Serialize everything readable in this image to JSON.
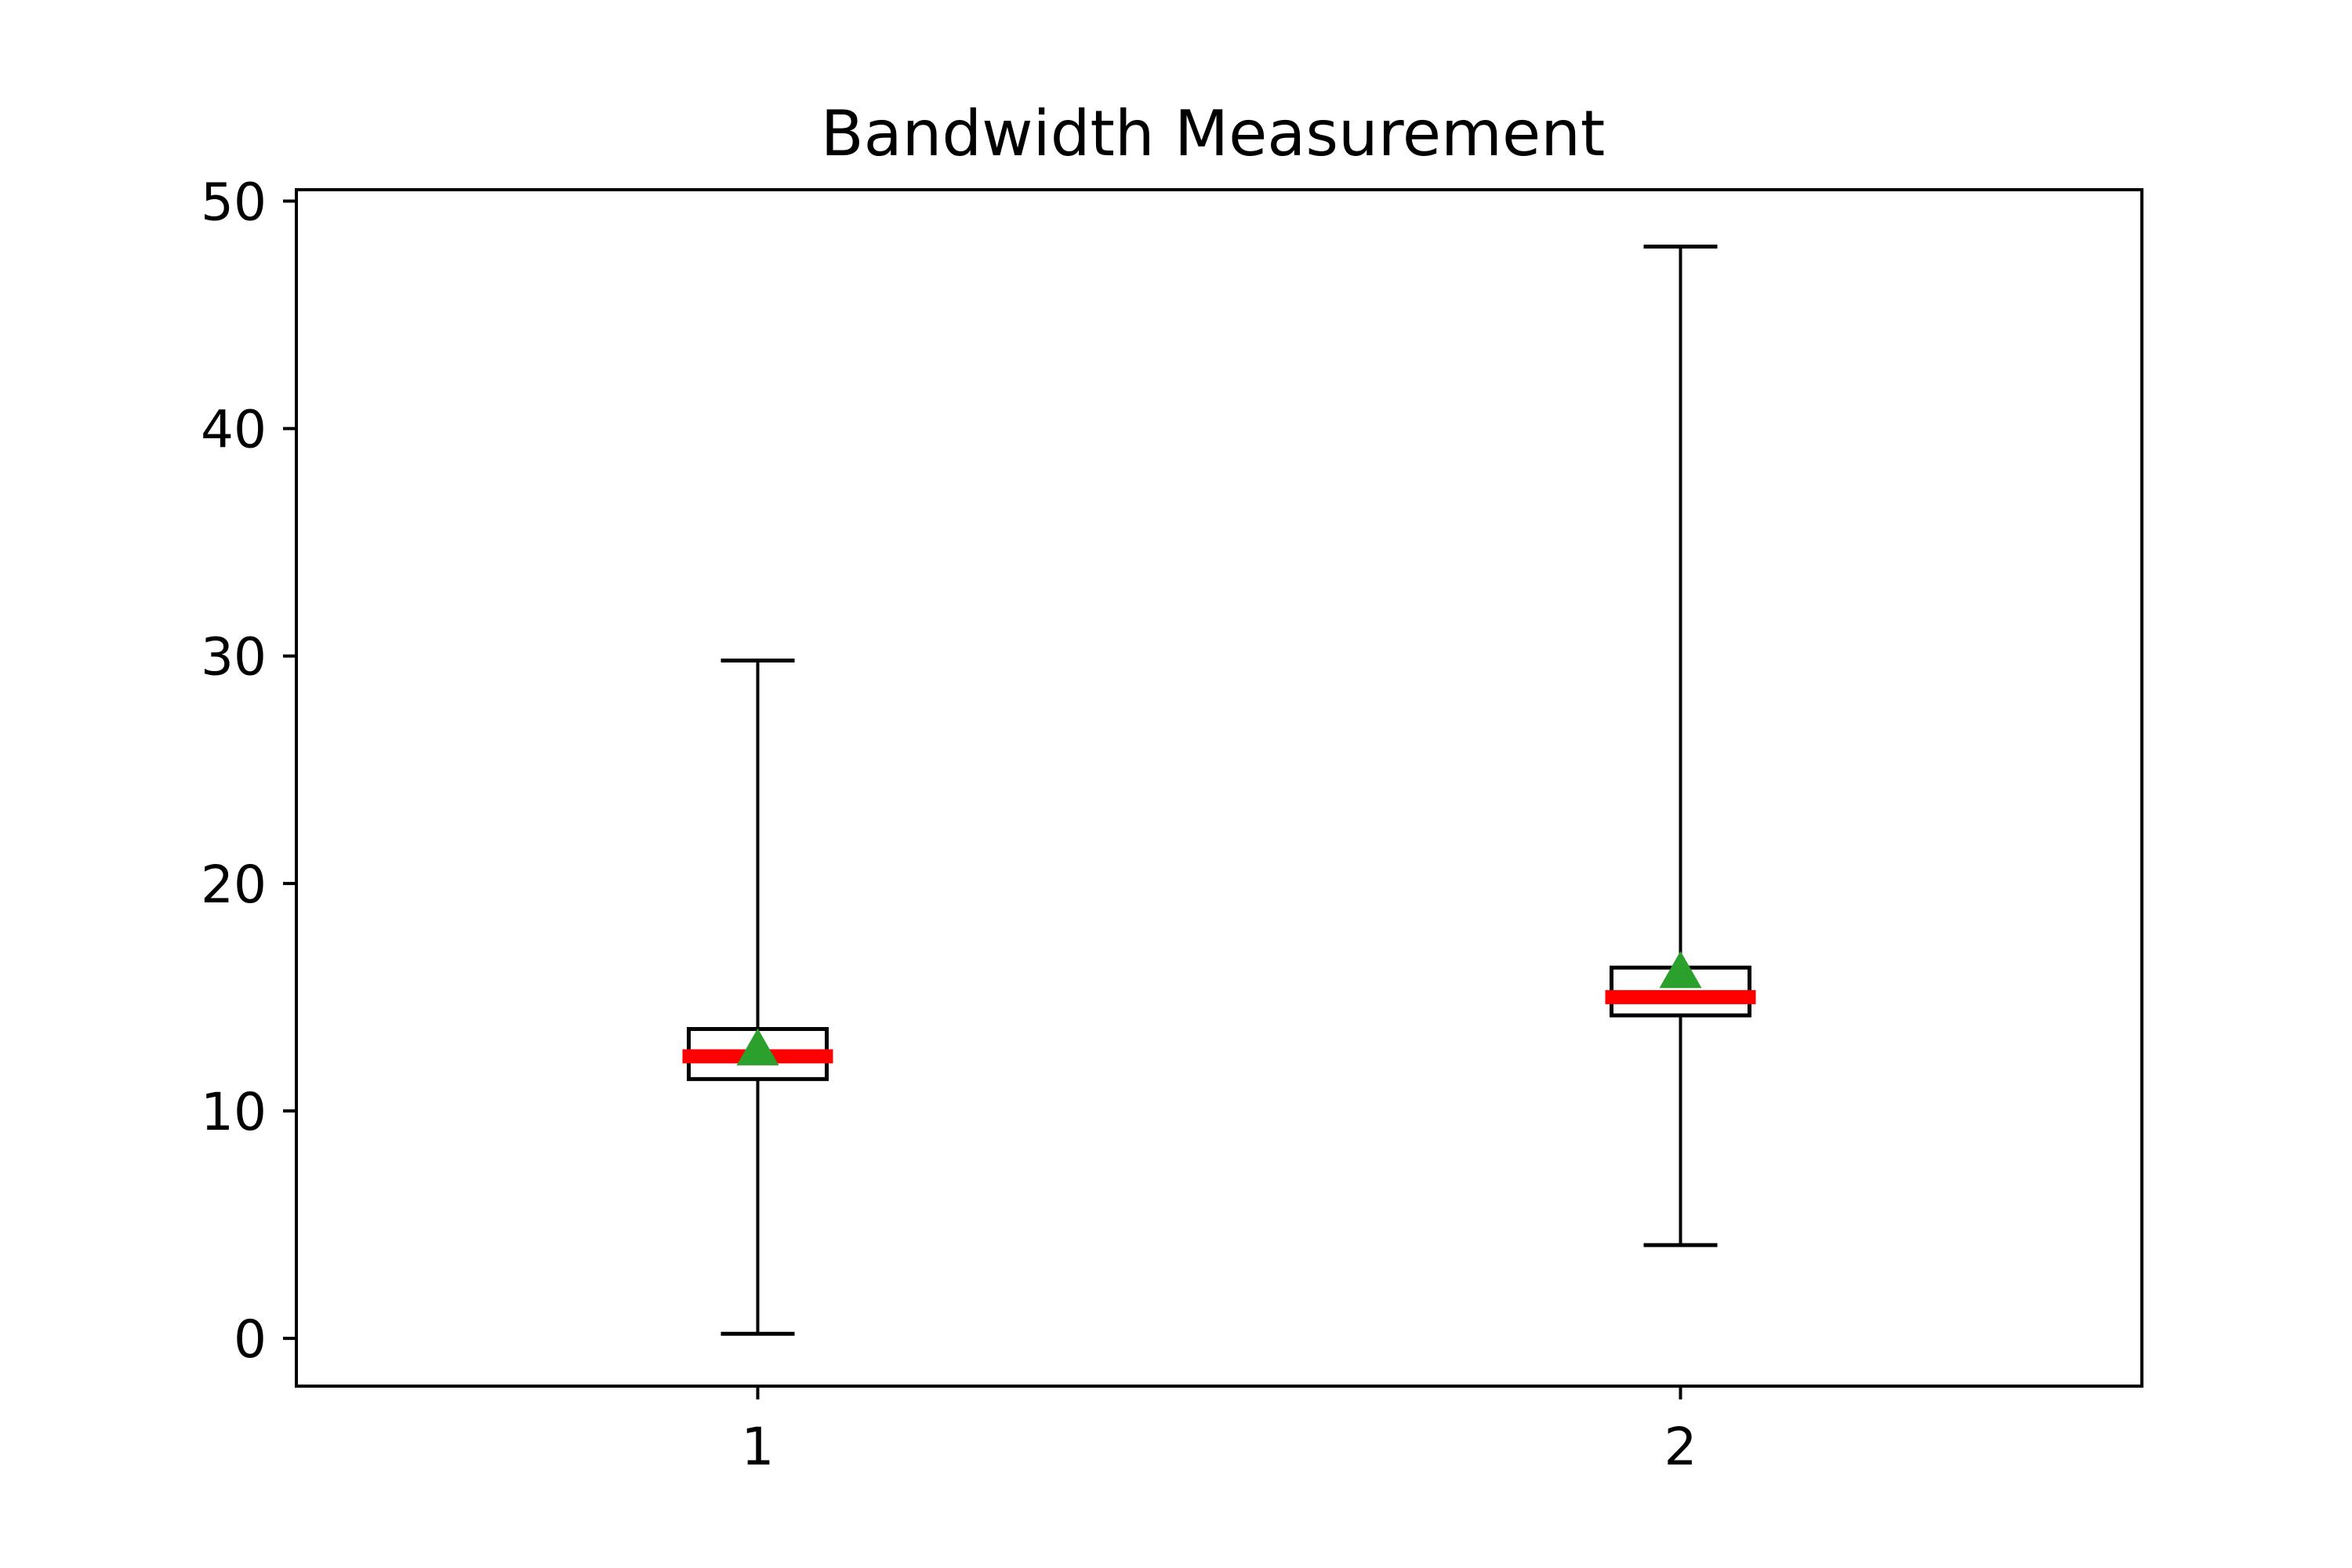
{
  "chart_data": {
    "type": "box",
    "title": "Bandwidth Measurement",
    "xlabel": "",
    "ylabel": "",
    "categories": [
      "1",
      "2"
    ],
    "ylim": [
      -2.1,
      50.5
    ],
    "yticks": [
      0,
      10,
      20,
      30,
      40,
      50
    ],
    "grid": false,
    "boxes": [
      {
        "label": "1",
        "whisker_low": 0.2,
        "q1": 11.4,
        "median": 12.4,
        "q3": 13.6,
        "whisker_high": 29.8,
        "mean": 12.7
      },
      {
        "label": "2",
        "whisker_low": 4.1,
        "q1": 14.2,
        "median": 15.0,
        "q3": 16.3,
        "whisker_high": 48.0,
        "mean": 16.1
      }
    ],
    "colors": {
      "median": "#ff0000",
      "mean": "#2ca02c",
      "box": "#000000"
    }
  }
}
